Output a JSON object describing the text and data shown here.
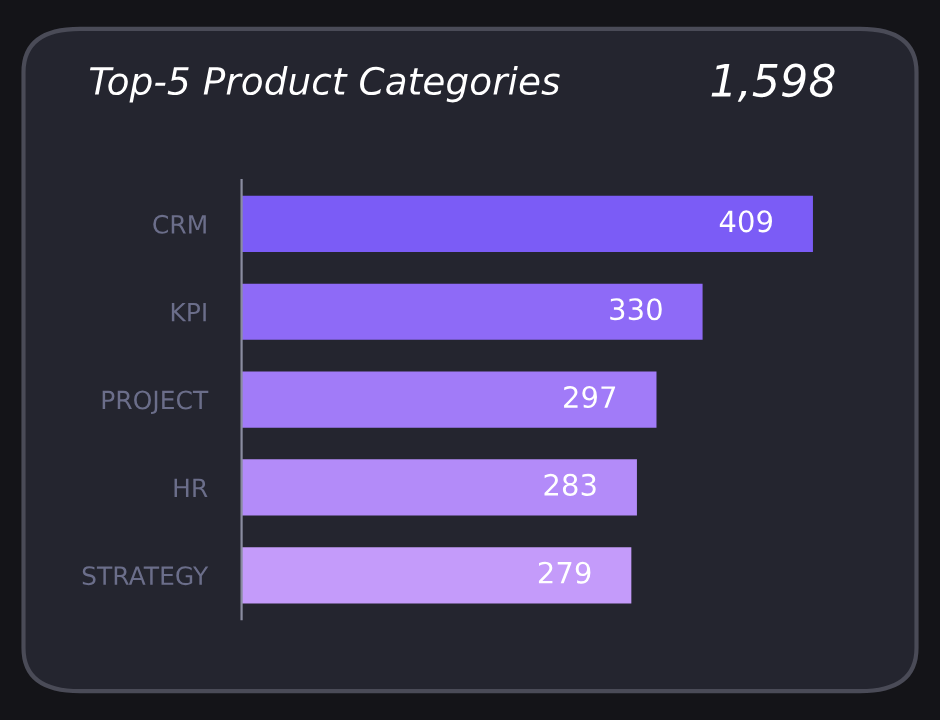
{
  "chart_data": {
    "type": "bar",
    "orientation": "horizontal",
    "title": "Top-5 Product Categories",
    "annotations": [
      "1,598"
    ],
    "categories": [
      "CRM",
      "KPI",
      "PROJECT",
      "HR",
      "STRATEGY"
    ],
    "values": [
      409,
      330,
      297,
      283,
      279
    ],
    "colors": [
      "#7b5cf6",
      "#8e6af7",
      "#a17bf8",
      "#b38bf9",
      "#c49bfa"
    ],
    "data_labels": true,
    "tick_labels": "y"
  }
}
